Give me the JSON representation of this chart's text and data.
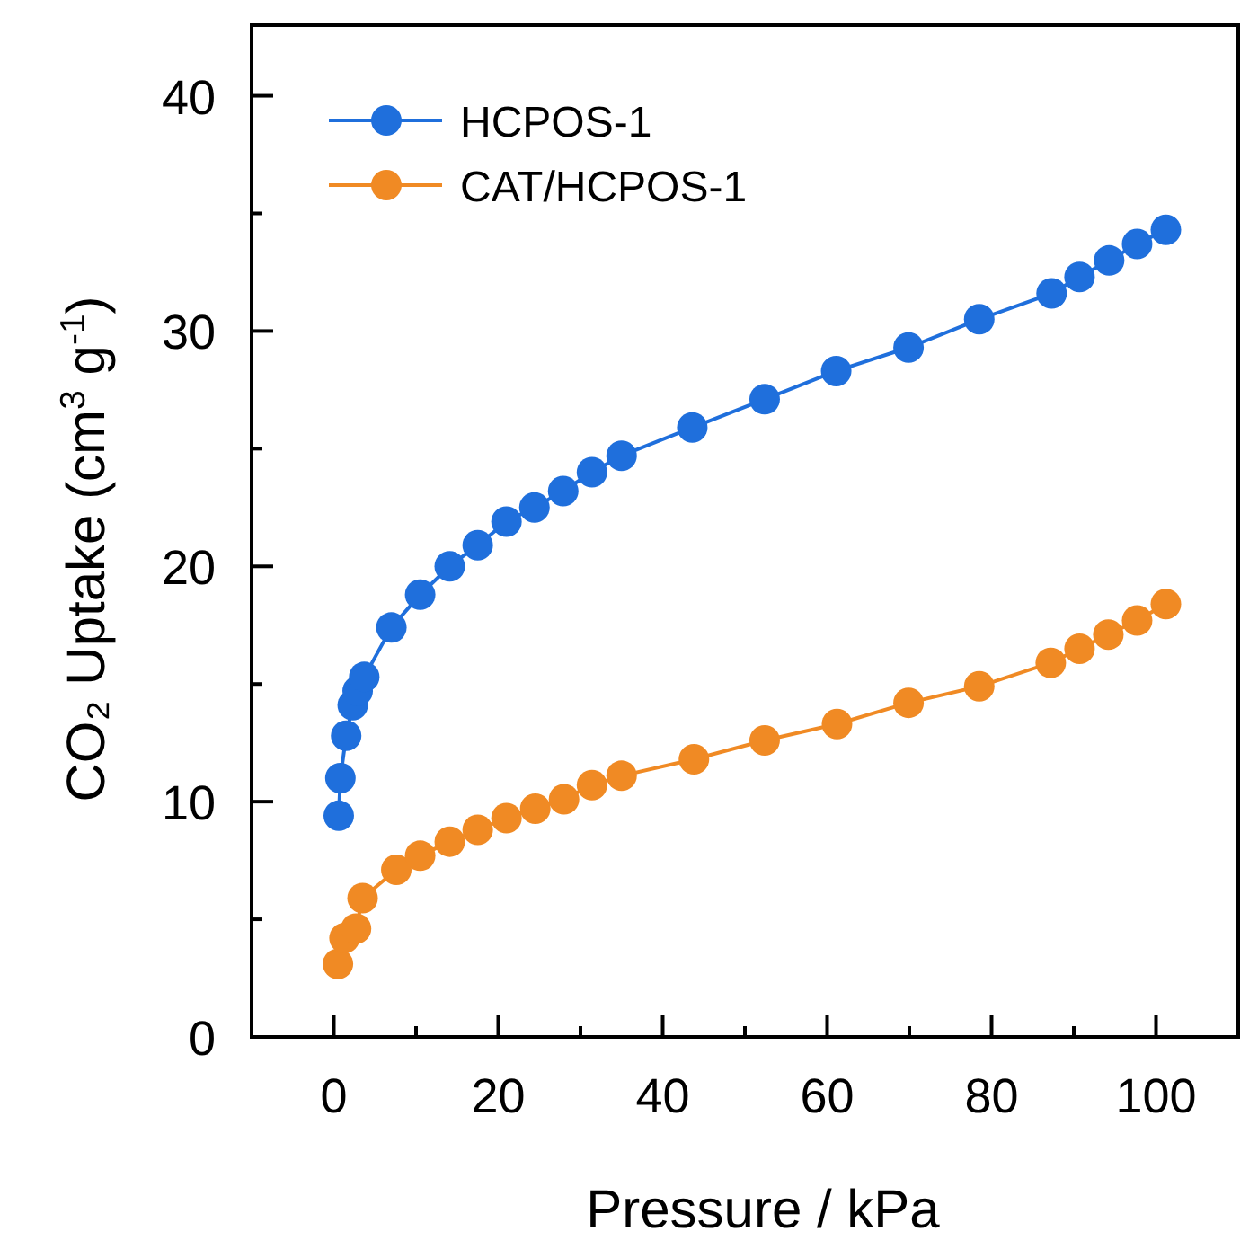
{
  "chart_data": {
    "type": "line",
    "xlabel": "Pressure / kPa",
    "ylabel": "CO₂ Uptake (cm$^{3}$ g$^{-1}$)",
    "xlim": [
      -10,
      110
    ],
    "ylim": [
      0,
      43
    ],
    "xticks": [
      0,
      {
        "value": 10,
        "label": null
      },
      20,
      {
        "value": 30,
        "label": null
      },
      40,
      {
        "value": 50,
        "label": null
      },
      60,
      {
        "value": 70,
        "label": null
      },
      80,
      {
        "value": 90,
        "label": null
      },
      100
    ],
    "yticks": [
      0,
      {
        "value": 5,
        "label": null
      },
      10,
      {
        "value": 15,
        "label": null
      },
      20,
      {
        "value": 25,
        "label": null
      },
      30,
      {
        "value": 35,
        "label": null
      },
      40
    ],
    "grid": false,
    "legend": "top left",
    "marker": "circle",
    "line_style": "solid",
    "series": [
      {
        "name": "HCPOS-1",
        "color": "#1f6fdc",
        "x": [
          0.6,
          0.8,
          1.5,
          2.3,
          2.9,
          3.7,
          7.0,
          10.5,
          14.1,
          17.5,
          21.0,
          24.4,
          27.9,
          31.4,
          35.0,
          43.6,
          52.4,
          61.1,
          69.9,
          78.5,
          87.3,
          90.7,
          94.3,
          97.7,
          101.2
        ],
        "values": [
          9.4,
          11.0,
          12.8,
          14.1,
          14.7,
          15.3,
          17.4,
          18.8,
          20.0,
          20.9,
          21.9,
          22.5,
          23.2,
          24.0,
          24.7,
          25.9,
          27.1,
          28.3,
          29.3,
          30.5,
          31.6,
          32.3,
          33.0,
          33.7,
          34.3
        ]
      },
      {
        "name": "CAT/HCPOS-1",
        "color": "#f08a24",
        "x": [
          0.5,
          0.8,
          1.3,
          2.7,
          3.5,
          7.6,
          10.5,
          14.1,
          17.5,
          21.0,
          24.5,
          28.0,
          31.4,
          35.0,
          43.8,
          52.4,
          61.2,
          69.9,
          78.5,
          87.2,
          90.7,
          94.2,
          97.7,
          101.2
        ],
        "values": [
          3.1,
          null,
          4.2,
          4.6,
          5.9,
          7.1,
          7.7,
          8.3,
          8.8,
          9.3,
          9.7,
          10.1,
          10.7,
          11.1,
          11.8,
          12.6,
          13.3,
          14.2,
          14.9,
          15.9,
          16.5,
          17.1,
          17.7,
          18.4
        ]
      }
    ]
  }
}
